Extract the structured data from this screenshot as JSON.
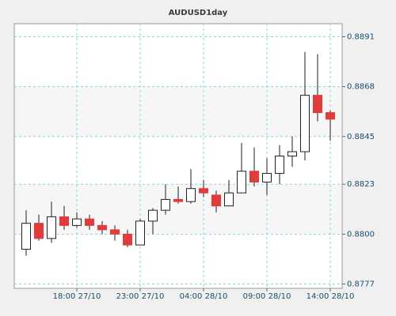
{
  "chart_data": {
    "type": "candlestick",
    "title": "AUDUSD1day",
    "categories": [
      null,
      null,
      null,
      null,
      "18:00 27/10",
      null,
      null,
      null,
      null,
      "23:00 27/10",
      null,
      null,
      null,
      null,
      "04:00 28/10",
      null,
      null,
      null,
      null,
      "09:00 28/10",
      null,
      null,
      null,
      null,
      "14:00 28/10"
    ],
    "open": [
      0.8793,
      0.8805,
      0.8798,
      0.8808,
      0.8804,
      0.8807,
      0.8804,
      0.8802,
      0.88,
      0.8795,
      0.8806,
      0.8811,
      0.8816,
      0.8815,
      0.8821,
      0.8818,
      0.8813,
      0.8819,
      0.8829,
      0.8824,
      0.8828,
      0.8836,
      0.8838,
      0.8864,
      0.8856
    ],
    "high": [
      0.8811,
      0.8809,
      0.8815,
      0.8813,
      0.881,
      0.8809,
      0.8806,
      0.8804,
      0.8802,
      0.8807,
      0.8812,
      0.8823,
      0.8822,
      0.883,
      0.8825,
      0.882,
      0.8825,
      0.8842,
      0.884,
      0.8835,
      0.8841,
      0.8845,
      0.8884,
      0.8883,
      0.8857
    ],
    "low": [
      0.879,
      0.8797,
      0.8796,
      0.8802,
      0.8803,
      0.8802,
      0.88,
      0.8797,
      0.8794,
      0.8795,
      0.88,
      0.8809,
      0.8814,
      0.8814,
      0.8817,
      0.881,
      0.8813,
      0.8819,
      0.8822,
      0.8818,
      0.8823,
      0.8831,
      0.8834,
      0.8852,
      0.8843
    ],
    "close": [
      0.8805,
      0.8798,
      0.8808,
      0.8804,
      0.8807,
      0.8804,
      0.8802,
      0.88,
      0.8795,
      0.8806,
      0.8811,
      0.8816,
      0.8815,
      0.8821,
      0.8819,
      0.8813,
      0.8819,
      0.8829,
      0.8824,
      0.8828,
      0.8836,
      0.8838,
      0.8864,
      0.8856,
      0.8853
    ],
    "up_color": "#ffffff",
    "down_color": "#e23b3b",
    "ylim": [
      0.8775,
      0.8897
    ],
    "yticks": [
      0.8777,
      {
        "value": 0.88,
        "label": "0.8800"
      },
      0.8823,
      0.8845,
      0.8868,
      0.8891
    ],
    "grid": true
  }
}
